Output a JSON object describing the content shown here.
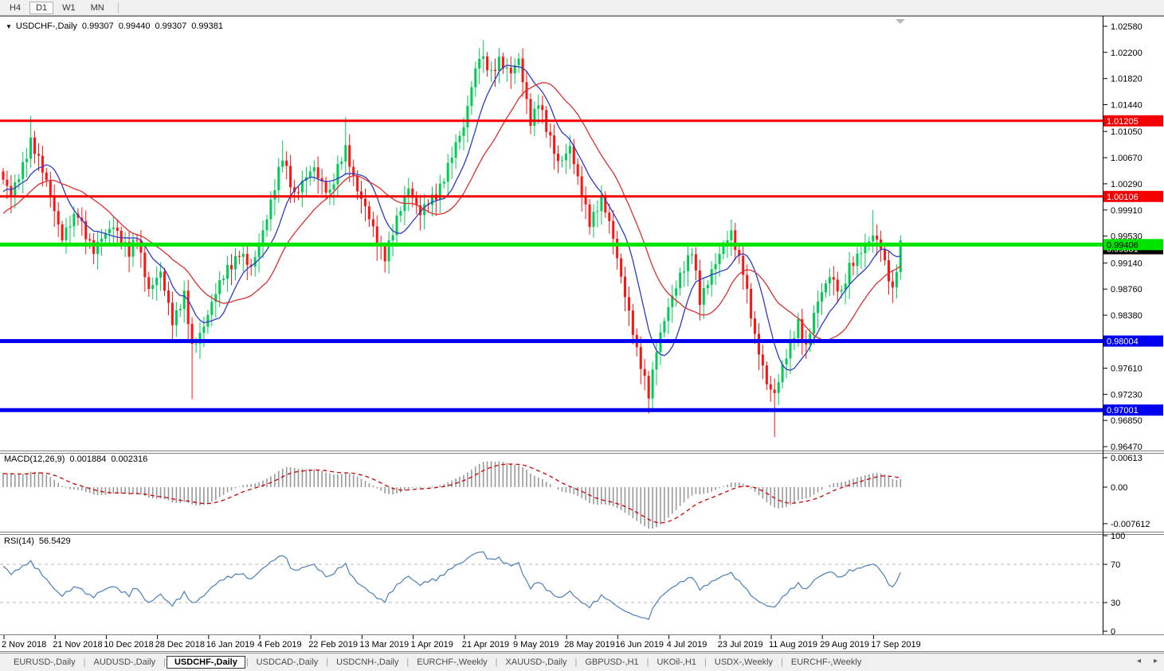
{
  "toolbar": {
    "timeframes": [
      {
        "label": "H4",
        "active": false
      },
      {
        "label": "D1",
        "active": true
      },
      {
        "label": "W1",
        "active": false
      },
      {
        "label": "MN",
        "active": false
      }
    ]
  },
  "chart": {
    "collapse_arrow": "▼",
    "title_symbol": "USDCHF-,Daily",
    "ohlc": {
      "o": "0.99307",
      "h": "0.99440",
      "l": "0.99307",
      "c": "0.99381"
    }
  },
  "macd_panel": {
    "title": "MACD(12,26,9)",
    "value_main": "0.001884",
    "value_signal": "0.002316"
  },
  "rsi_panel": {
    "title": "RSI(14)",
    "value": "56.5429"
  },
  "tabbar": {
    "tabs": [
      {
        "label": "EURUSD-,Daily",
        "active": false
      },
      {
        "label": "AUDUSD-,Daily",
        "active": false
      },
      {
        "label": "USDCHF-,Daily",
        "active": true
      },
      {
        "label": "USDCAD-,Daily",
        "active": false
      },
      {
        "label": "USDCNH-,Daily",
        "active": false
      },
      {
        "label": "EURCHF-,Weekly",
        "active": false
      },
      {
        "label": "XAUUSD-,Daily",
        "active": false
      },
      {
        "label": "GBPUSD-,H1",
        "active": false
      },
      {
        "label": "UKOil-,H1",
        "active": false
      },
      {
        "label": "USDX-,Weekly",
        "active": false
      },
      {
        "label": "EURCHF-,Weekly",
        "active": false
      }
    ],
    "nav_left": "◂",
    "nav_right": "▸"
  },
  "chart_data": {
    "type": "candlestick",
    "symbol": "USDCHF",
    "timeframe": "Daily",
    "date_labels": [
      "2 Nov 2018",
      "21 Nov 2018",
      "10 Dec 2018",
      "28 Dec 2018",
      "16 Jan 2019",
      "4 Feb 2019",
      "22 Feb 2019",
      "13 Mar 2019",
      "1 Apr 2019",
      "21 Apr 2019",
      "9 May 2019",
      "28 May 2019",
      "16 Jun 2019",
      "4 Jul 2019",
      "23 Jul 2019",
      "11 Aug 2019",
      "29 Aug 2019",
      "17 Sep 2019"
    ],
    "price_axis": {
      "min": 0.9647,
      "max": 1.0258,
      "ticks": [
        1.0258,
        1.022,
        1.0182,
        1.0144,
        1.0105,
        1.0067,
        1.0029,
        0.9991,
        0.9953,
        0.9914,
        0.9876,
        0.9838,
        0.9761,
        0.9723,
        0.9685,
        0.9647
      ]
    },
    "current_price": "0.99381",
    "hlines": [
      {
        "price": 1.01205,
        "label": "1.01205",
        "color": "#f40000",
        "width": 3,
        "text": "#ffffff"
      },
      {
        "price": 1.00106,
        "label": "1.00106",
        "color": "#f40000",
        "width": 3,
        "text": "#ffffff"
      },
      {
        "price": 0.99406,
        "label": "0.99406",
        "color": "#00e400",
        "width": 5,
        "text": "#000000"
      },
      {
        "price": 0.98004,
        "label": "0.98004",
        "color": "#0000f0",
        "width": 5,
        "text": "#ffffff"
      },
      {
        "price": 0.97001,
        "label": "0.97001",
        "color": "#0000f0",
        "width": 5,
        "text": "#ffffff"
      }
    ],
    "candles": {
      "count": 229,
      "bull_color": "#00cc55",
      "bear_color": "#ff1414",
      "close_anchors": [
        [
          0,
          1.0035
        ],
        [
          2,
          1.0008
        ],
        [
          7,
          1.0092
        ],
        [
          12,
          1.0015
        ],
        [
          15,
          0.995
        ],
        [
          19,
          0.9986
        ],
        [
          23,
          0.993
        ],
        [
          28,
          0.9972
        ],
        [
          32,
          0.9925
        ],
        [
          34,
          0.9952
        ],
        [
          37,
          0.9876
        ],
        [
          40,
          0.9896
        ],
        [
          43,
          0.9832
        ],
        [
          46,
          0.9866
        ],
        [
          48,
          0.9788
        ],
        [
          50,
          0.9812
        ],
        [
          53,
          0.9856
        ],
        [
          57,
          0.9906
        ],
        [
          60,
          0.993
        ],
        [
          63,
          0.9902
        ],
        [
          66,
          0.9964
        ],
        [
          69,
          1.0022
        ],
        [
          71,
          1.0066
        ],
        [
          74,
          1.0016
        ],
        [
          79,
          1.005
        ],
        [
          83,
          1.0016
        ],
        [
          87,
          1.008
        ],
        [
          90,
          1.0022
        ],
        [
          95,
          0.9946
        ],
        [
          97,
          0.9926
        ],
        [
          101,
          0.999
        ],
        [
          103,
          1.0026
        ],
        [
          106,
          0.9986
        ],
        [
          110,
          1.0012
        ],
        [
          113,
          1.0056
        ],
        [
          117,
          1.011
        ],
        [
          119,
          1.0176
        ],
        [
          121,
          1.0216
        ],
        [
          124,
          1.0186
        ],
        [
          126,
          1.0212
        ],
        [
          129,
          1.019
        ],
        [
          131,
          1.0206
        ],
        [
          134,
          1.0122
        ],
        [
          136,
          1.015
        ],
        [
          138,
          1.0106
        ],
        [
          141,
          1.0062
        ],
        [
          144,
          1.0082
        ],
        [
          146,
          1.0032
        ],
        [
          149,
          0.9976
        ],
        [
          152,
          1.0006
        ],
        [
          155,
          0.995
        ],
        [
          158,
          0.987
        ],
        [
          161,
          0.9782
        ],
        [
          164,
          0.9726
        ],
        [
          166,
          0.979
        ],
        [
          169,
          0.9846
        ],
        [
          172,
          0.99
        ],
        [
          175,
          0.993
        ],
        [
          177,
          0.9856
        ],
        [
          180,
          0.9906
        ],
        [
          185,
          0.9956
        ],
        [
          188,
          0.9906
        ],
        [
          191,
          0.9802
        ],
        [
          194,
          0.9742
        ],
        [
          196,
          0.9726
        ],
        [
          199,
          0.9776
        ],
        [
          202,
          0.983
        ],
        [
          204,
          0.9792
        ],
        [
          207,
          0.9856
        ],
        [
          210,
          0.99
        ],
        [
          213,
          0.9866
        ],
        [
          215,
          0.9906
        ],
        [
          218,
          0.9936
        ],
        [
          221,
          0.995
        ],
        [
          223,
          0.9936
        ],
        [
          226,
          0.9876
        ],
        [
          228,
          0.9938
        ]
      ],
      "special_wicks": {
        "7": {
          "high": 1.0128
        },
        "48": {
          "low": 0.9716
        },
        "71": {
          "high": 1.0092
        },
        "87": {
          "high": 1.0126
        },
        "97": {
          "low": 0.99
        },
        "122": {
          "high": 1.0238
        },
        "164": {
          "low": 0.9695
        },
        "196": {
          "low": 0.9661
        },
        "221": {
          "high": 0.9991
        },
        "228": {
          "high": 0.9944
        }
      }
    },
    "moving_averages": [
      {
        "type": "SMA",
        "period": 9,
        "color": "#2b3bc4"
      },
      {
        "type": "SMA",
        "period": 21,
        "color": "#d93030"
      }
    ],
    "macd": {
      "fast": 12,
      "slow": 26,
      "signal": 9,
      "axis_ticks": [
        "0.00613",
        "0.00",
        "-0.007612"
      ],
      "histogram_color": "#999999",
      "signal_color": "#cc0000"
    },
    "rsi": {
      "period": 14,
      "levels": [
        70,
        30
      ],
      "axis_ticks": [
        100,
        70,
        30,
        0
      ],
      "color": "#4a7ebb"
    }
  }
}
